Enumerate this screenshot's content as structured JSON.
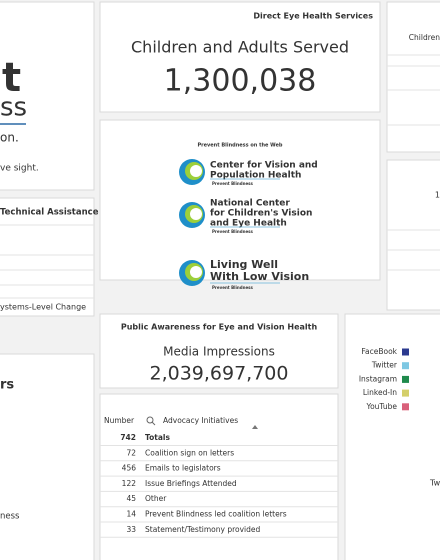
{
  "left": {
    "logo_fragments": [
      "t",
      "ss"
    ],
    "tagline": "on.",
    "mission": "ve sight.",
    "technical_assistance": "Technical Assistance",
    "systems_change": "ystems-Level Change",
    "section": "rs",
    "link": "ness"
  },
  "direct_services": {
    "title": "Direct Eye Health Services",
    "label": "Children and Adults Served",
    "value": "1,300,038"
  },
  "web": {
    "title": "Prevent Blindness on the Web",
    "logos": [
      {
        "name": [
          "Center for Vision and",
          "Population Health"
        ],
        "org": "Prevent Blindness"
      },
      {
        "name": [
          "National Center",
          "for Children's Vision",
          "and Eye Health"
        ],
        "org": "Prevent Blindness"
      },
      {
        "name": [
          "Living Well",
          "With Low Vision"
        ],
        "org": "Prevent Blindness"
      }
    ]
  },
  "awareness": {
    "title": "Public Awareness for Eye and Vision Health",
    "label": "Media Impressions",
    "value": "2,039,697,700"
  },
  "table": {
    "columns": [
      "Number",
      "Advocacy Initiatives"
    ],
    "rows": [
      [
        742,
        "Totals"
      ],
      [
        72,
        "Coalition sign on letters"
      ],
      [
        456,
        "Emails to legislators"
      ],
      [
        122,
        "Issue Briefings Attended"
      ],
      [
        45,
        "Other"
      ],
      [
        14,
        "Prevent Blindness led coalition letters"
      ],
      [
        33,
        "Statement/Testimony provided"
      ]
    ]
  },
  "right": {
    "children": "Children",
    "number": "1",
    "legend": [
      {
        "name": "FaceBook",
        "color": "#2b3a8f"
      },
      {
        "name": "Twitter",
        "color": "#7ec8e3"
      },
      {
        "name": "Instagram",
        "color": "#1f8a4c"
      },
      {
        "name": "Linked-In",
        "color": "#d4cf6a"
      },
      {
        "name": "YouTube",
        "color": "#d9607a"
      }
    ],
    "fragment": "Tw"
  }
}
